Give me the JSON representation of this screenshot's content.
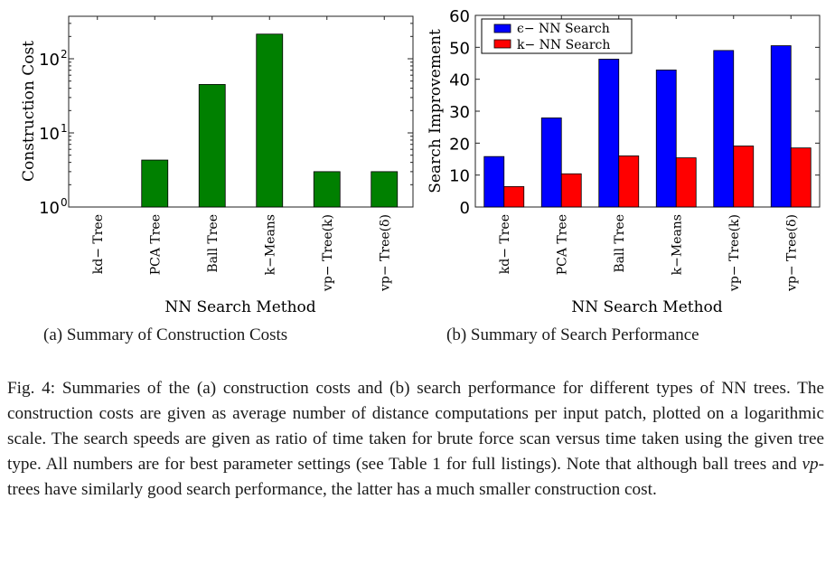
{
  "chart_data": [
    {
      "id": "a",
      "type": "bar",
      "yscale": "log",
      "title": "",
      "xlabel": "NN Search Method",
      "ylabel": "Construction Cost",
      "categories": [
        "kd− Tree",
        "PCA Tree",
        "Ball Tree",
        "k−Means",
        "vp− Tree(k)",
        "vp− Tree(δ)"
      ],
      "values": [
        1.0,
        4.3,
        45,
        215,
        3.0,
        3.0
      ],
      "ylim": [
        1,
        400
      ],
      "yticks": [
        1,
        10,
        100
      ],
      "ytick_labels": [
        {
          "base": "10",
          "exp": "0"
        },
        {
          "base": "10",
          "exp": "1"
        },
        {
          "base": "10",
          "exp": "2"
        }
      ],
      "bar_color": "#008000",
      "grid": false,
      "subcaption": "(a) Summary of Construction Costs"
    },
    {
      "id": "b",
      "type": "bar",
      "yscale": "linear",
      "title": "",
      "xlabel": "NN Search Method",
      "ylabel": "Search Improvement",
      "categories": [
        "kd− Tree",
        "PCA Tree",
        "Ball Tree",
        "k−Means",
        "vp− Tree(k)",
        "vp− Tree(δ)"
      ],
      "series": [
        {
          "name": "ϵ− NN Search",
          "color": "#0000ff",
          "values": [
            15.8,
            27.9,
            46.3,
            42.9,
            49.0,
            50.5
          ]
        },
        {
          "name": "k− NN Search",
          "color": "#ff0000",
          "values": [
            6.4,
            10.4,
            16.0,
            15.4,
            19.1,
            18.5
          ]
        }
      ],
      "ylim": [
        0,
        60
      ],
      "yticks": [
        0,
        10,
        20,
        30,
        40,
        50,
        60
      ],
      "legend_position": "top-left",
      "grid": false,
      "subcaption": "(b) Summary of Search Performance"
    }
  ],
  "caption": {
    "label": "Fig. 4:",
    "text_1": " Summaries of the (a) construction costs and (b) search performance for different types of NN trees. The construction costs are given as average number of distance computations per input patch, plotted on a logarithmic scale. The search speeds are given as ratio of time taken for brute force scan versus time taken using the given tree type. All numbers are for best parameter settings (see Table 1 for full listings). Note that although ball trees and ",
    "italic": "vp",
    "text_2": "-trees have similarly good search performance, the latter has a much smaller construction cost."
  }
}
